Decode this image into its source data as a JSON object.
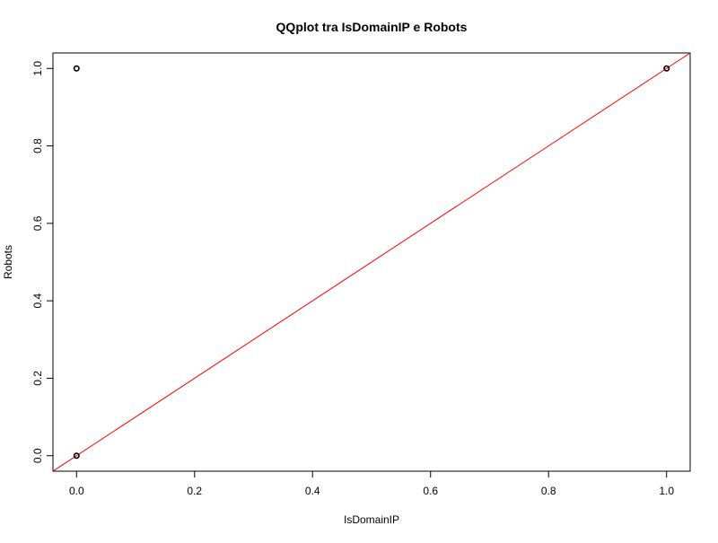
{
  "chart_data": {
    "type": "scatter",
    "title": "QQplot tra IsDomainIP e Robots",
    "xlabel": "IsDomainIP",
    "ylabel": "Robots",
    "xlim": [
      -0.04,
      1.04
    ],
    "ylim": [
      -0.04,
      1.04
    ],
    "x_ticks": [
      0.0,
      0.2,
      0.4,
      0.6,
      0.8,
      1.0
    ],
    "x_tick_labels": [
      "0.0",
      "0.2",
      "0.4",
      "0.6",
      "0.8",
      "1.0"
    ],
    "y_ticks": [
      0.0,
      0.2,
      0.4,
      0.6,
      0.8,
      1.0
    ],
    "y_tick_labels": [
      "0.0",
      "0.2",
      "0.4",
      "0.6",
      "0.8",
      "1.0"
    ],
    "points": [
      {
        "x": 0,
        "y": 0
      },
      {
        "x": 0,
        "y": 1
      },
      {
        "x": 1,
        "y": 1
      }
    ],
    "reference_line": {
      "intercept": 0,
      "slope": 1,
      "color": "#ff0000"
    },
    "point_color": "#000000",
    "grid": false,
    "legend": "none"
  }
}
